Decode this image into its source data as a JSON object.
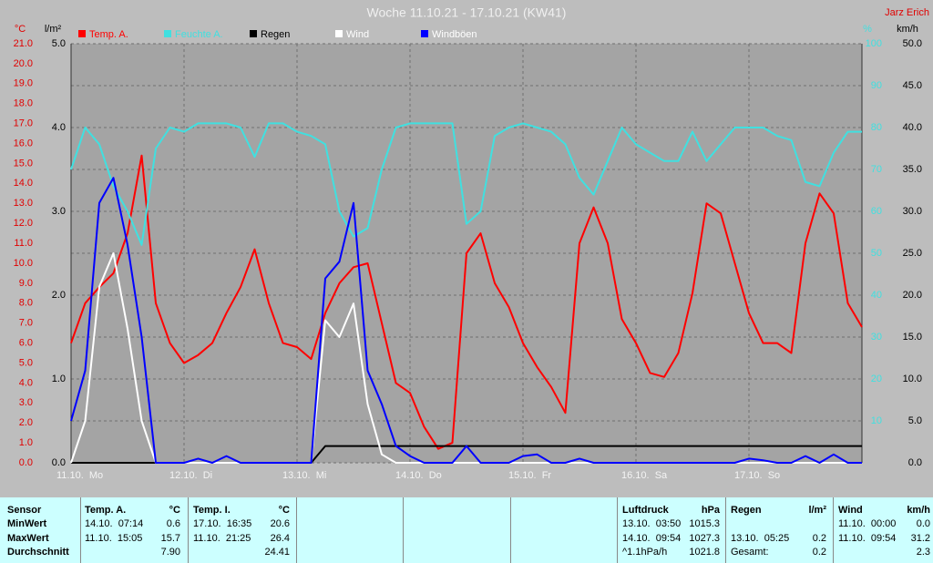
{
  "chart_data": {
    "type": "line",
    "title": "Woche 11.10.21 - 17.10.21 (KW41)",
    "subtitle": "Jarz Erich",
    "x": [
      0,
      0.125,
      0.25,
      0.375,
      0.5,
      0.625,
      0.75,
      0.875,
      1,
      1.125,
      1.25,
      1.375,
      1.5,
      1.625,
      1.75,
      1.875,
      2,
      2.125,
      2.25,
      2.375,
      2.5,
      2.625,
      2.75,
      2.875,
      3,
      3.125,
      3.25,
      3.375,
      3.5,
      3.625,
      3.75,
      3.875,
      4,
      4.125,
      4.25,
      4.375,
      4.5,
      4.625,
      4.75,
      4.875,
      5,
      5.125,
      5.25,
      5.375,
      5.5,
      5.625,
      5.75,
      5.875,
      6,
      6.125,
      6.25,
      6.375,
      6.5,
      6.625,
      6.75,
      6.875,
      7
    ],
    "xlim": [
      0,
      7
    ],
    "xticks": [
      {
        "value": 0,
        "label": "11.10.  Mo"
      },
      {
        "value": 1,
        "label": "12.10.  Di"
      },
      {
        "value": 2,
        "label": "13.10.  Mi"
      },
      {
        "value": 3,
        "label": "14.10.  Do"
      },
      {
        "value": 4,
        "label": "15.10.  Fr"
      },
      {
        "value": 5,
        "label": "16.10.  Sa"
      },
      {
        "value": 6,
        "label": "17.10.  So"
      }
    ],
    "y_label": "°C",
    "ylim": [
      0,
      21
    ],
    "yticks": [
      {
        "value": 0,
        "label": "0.0"
      },
      {
        "value": 1,
        "label": "1.0"
      },
      {
        "value": 2,
        "label": "2.0"
      },
      {
        "value": 3,
        "label": "3.0"
      },
      {
        "value": 4,
        "label": "4.0"
      },
      {
        "value": 5,
        "label": "5.0"
      },
      {
        "value": 6,
        "label": "6.0"
      },
      {
        "value": 7,
        "label": "7.0"
      },
      {
        "value": 8,
        "label": "8.0"
      },
      {
        "value": 9,
        "label": "9.0"
      },
      {
        "value": 10,
        "label": "10.0"
      },
      {
        "value": 11,
        "label": "11.0"
      },
      {
        "value": 12,
        "label": "12.0"
      },
      {
        "value": 13,
        "label": "13.0"
      },
      {
        "value": 14,
        "label": "14.0"
      },
      {
        "value": 15,
        "label": "15.0"
      },
      {
        "value": 16,
        "label": "16.0"
      },
      {
        "value": 17,
        "label": "17.0"
      },
      {
        "value": 18,
        "label": "18.0"
      },
      {
        "value": 19,
        "label": "19.0"
      },
      {
        "value": 20,
        "label": "20.0"
      },
      {
        "value": 21,
        "label": "21.0"
      }
    ],
    "y2_label": "l/m²",
    "y2lim": [
      0,
      5
    ],
    "y2ticks": [
      {
        "value": 0,
        "label": "0.0"
      },
      {
        "value": 1,
        "label": "1.0"
      },
      {
        "value": 2,
        "label": "2.0"
      },
      {
        "value": 3,
        "label": "3.0"
      },
      {
        "value": 4,
        "label": "4.0"
      },
      {
        "value": 5,
        "label": "5.0"
      }
    ],
    "y3_label": "%",
    "y3lim": [
      0,
      100
    ],
    "y3ticks": [
      10,
      20,
      30,
      40,
      50,
      60,
      70,
      80,
      90,
      100
    ],
    "y4_label": "km/h",
    "y4lim": [
      0,
      50
    ],
    "y4ticks": [
      {
        "value": 0,
        "label": "0.0"
      },
      {
        "value": 5,
        "label": "5.0"
      },
      {
        "value": 10,
        "label": "10.0"
      },
      {
        "value": 15,
        "label": "15.0"
      },
      {
        "value": 20,
        "label": "20.0"
      },
      {
        "value": 25,
        "label": "25.0"
      },
      {
        "value": 30,
        "label": "30.0"
      },
      {
        "value": 35,
        "label": "35.0"
      },
      {
        "value": 40,
        "label": "40.0"
      },
      {
        "value": 45,
        "label": "45.0"
      },
      {
        "value": 50,
        "label": "50.0"
      }
    ],
    "grid": true,
    "series": [
      {
        "name": "Temp. A.",
        "color": "#ff0000",
        "axis": "y",
        "values": [
          6.0,
          8.0,
          8.8,
          9.5,
          11.5,
          15.4,
          8.0,
          6.0,
          5.0,
          5.4,
          6.0,
          7.5,
          8.8,
          10.7,
          8.0,
          6.0,
          5.8,
          5.2,
          7.5,
          9.0,
          9.8,
          10.0,
          7.0,
          4.0,
          3.5,
          1.8,
          0.7,
          1.0,
          10.5,
          11.5,
          9.0,
          7.8,
          6.0,
          4.8,
          3.8,
          2.5,
          11.0,
          12.8,
          11.0,
          7.2,
          6.0,
          4.5,
          4.3,
          5.5,
          8.5,
          13.0,
          12.5,
          10.0,
          7.5,
          6.0,
          6.0,
          5.5,
          11.0,
          13.5,
          12.5,
          8.0,
          6.8
        ]
      },
      {
        "name": "Feuchte A.",
        "color": "#40e0e0",
        "axis": "y3",
        "values": [
          70,
          80,
          76,
          66,
          60,
          52,
          75,
          80,
          79,
          81,
          81,
          81,
          80,
          73,
          81,
          81,
          79,
          78,
          76,
          60,
          54,
          56,
          70,
          80,
          81,
          81,
          81,
          81,
          57,
          60,
          78,
          80,
          81,
          80,
          79,
          76,
          68,
          64,
          72,
          80,
          76,
          74,
          72,
          72,
          79,
          72,
          76,
          80,
          80,
          80,
          78,
          77,
          67,
          66,
          74,
          79,
          79
        ]
      },
      {
        "name": "Regen",
        "color": "#000000",
        "axis": "y2",
        "values": [
          0,
          0,
          0,
          0,
          0,
          0,
          0,
          0,
          0,
          0,
          0,
          0,
          0,
          0,
          0,
          0,
          0,
          0,
          0.2,
          0.2,
          0.2,
          0.2,
          0.2,
          0.2,
          0.2,
          0.2,
          0.2,
          0.2,
          0.2,
          0.2,
          0.2,
          0.2,
          0.2,
          0.2,
          0.2,
          0.2,
          0.2,
          0.2,
          0.2,
          0.2,
          0.2,
          0.2,
          0.2,
          0.2,
          0.2,
          0.2,
          0.2,
          0.2,
          0.2,
          0.2,
          0.2,
          0.2,
          0.2,
          0.2,
          0.2,
          0.2,
          0.2
        ]
      },
      {
        "name": "Wind",
        "color": "#ffffff",
        "axis": "y4",
        "values": [
          0,
          5,
          21,
          25,
          16,
          5,
          0,
          0,
          0,
          0,
          0,
          0,
          0,
          0,
          0,
          0,
          0,
          0,
          17,
          15,
          19,
          7,
          1,
          0,
          0,
          0,
          0,
          0,
          0,
          0,
          0,
          0,
          0,
          0,
          0,
          0,
          0,
          0,
          0,
          0,
          0,
          0,
          0,
          0,
          0,
          0,
          0,
          0,
          0,
          0,
          0,
          0,
          0,
          0,
          0,
          0,
          0
        ]
      },
      {
        "name": "Windböen",
        "color": "#0000ff",
        "axis": "y4",
        "values": [
          5,
          11,
          31,
          34,
          26,
          15,
          0,
          0,
          0,
          0.5,
          0,
          0.8,
          0,
          0,
          0,
          0,
          0,
          0,
          22,
          24,
          31,
          11,
          7,
          2,
          0.8,
          0,
          0,
          0,
          2,
          0,
          0,
          0,
          0.8,
          1,
          0,
          0,
          0.5,
          0,
          0,
          0,
          0,
          0,
          0,
          0,
          0,
          0,
          0,
          0,
          0.5,
          0.3,
          0,
          0,
          0.8,
          0,
          1,
          0,
          0
        ]
      }
    ]
  },
  "table": {
    "sensor": [
      "Sensor",
      "MinWert",
      "MaxWert",
      "Durchschnitt"
    ],
    "groups": [
      {
        "name": "Temp. A.",
        "unit": "°C",
        "rows": [
          [
            "14.10.  07:14",
            "0.6"
          ],
          [
            "11.10.  15:05",
            "15.7"
          ],
          [
            null,
            "7.90"
          ]
        ]
      },
      {
        "name": "Temp. I.",
        "unit": "°C",
        "rows": [
          [
            "17.10.  16:35",
            "20.6"
          ],
          [
            "11.10.  21:25",
            "26.4"
          ],
          [
            null,
            "24.41"
          ]
        ]
      },
      {
        "name": "Luftdruck",
        "unit": "hPa",
        "rows": [
          [
            "13.10.  03:50",
            "1015.3"
          ],
          [
            "14.10.  09:54",
            "1027.3"
          ],
          [
            "^1.1hPa/h",
            "1021.8"
          ]
        ]
      },
      {
        "name": "Regen",
        "unit": "l/m²",
        "rows": [
          [
            null,
            null
          ],
          [
            "13.10.  05:25",
            "0.2"
          ],
          [
            "Gesamt:",
            "0.2"
          ]
        ]
      },
      {
        "name": "Wind",
        "unit": "km/h",
        "rows": [
          [
            "11.10.  00:00",
            "0.0"
          ],
          [
            "11.10.  09:54",
            "31.2"
          ],
          [
            null,
            "2.3"
          ]
        ]
      }
    ]
  }
}
